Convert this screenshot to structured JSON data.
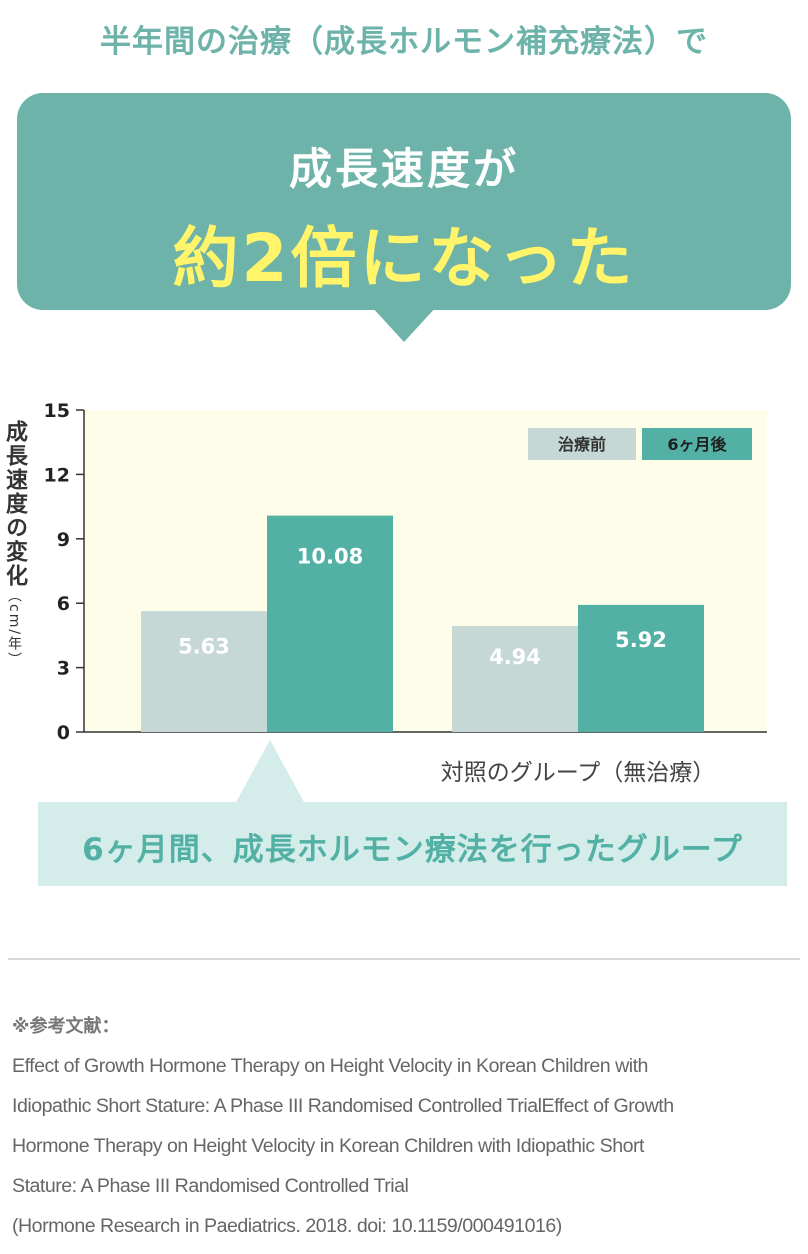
{
  "heading": "半年間の治療（成長ホルモン補充療法）で",
  "bubble": {
    "line1": "成長速度が",
    "line2": "約2倍になった"
  },
  "chart_data": {
    "type": "bar",
    "ylabel": "成長速度の変化",
    "yunit": "（cm/年）",
    "ylim": [
      0,
      15
    ],
    "yticks": [
      0,
      3,
      6,
      9,
      12,
      15
    ],
    "categories": [
      "6ヶ月間、成長ホルモン療法を行ったグループ",
      "対照のグループ（無治療）"
    ],
    "series": [
      {
        "name": "治療前",
        "values": [
          5.63,
          4.94
        ],
        "value_labels": [
          "5.63",
          "4.94"
        ]
      },
      {
        "name": "6ヶ月後",
        "values": [
          10.08,
          5.92
        ],
        "value_labels": [
          "10.08",
          "5.92"
        ]
      }
    ],
    "legend_position": "top-right",
    "colors": {
      "before": "#c6d8d5",
      "after": "#52b0a5",
      "plot_bg": "#fdfde9",
      "axis": "#333333"
    }
  },
  "treatment_group_label": "6ヶ月間、成長ホルモン療法を行ったグループ",
  "control_group_label": "対照のグループ（無治療）",
  "reference": {
    "title": "※参考文献：",
    "lines": [
      "Effect of Growth Hormone Therapy on Height Velocity in Korean Children with",
      "Idiopathic Short Stature: A Phase III Randomised Controlled TrialEffect of Growth",
      "Hormone Therapy on Height Velocity in Korean Children with Idiopathic Short",
      "Stature: A Phase III Randomised Controlled Trial",
      "(Hormone Research in Paediatrics. 2018. doi: 10.1159/000491016)"
    ]
  }
}
